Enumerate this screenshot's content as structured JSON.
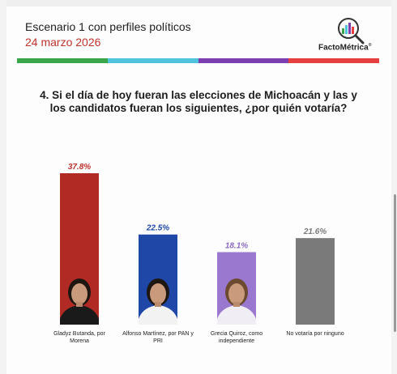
{
  "header": {
    "title": "Escenario 1 con perfiles políticos",
    "date": "24 marzo 2026"
  },
  "brand": {
    "name": "FactoMétrica",
    "reg": "®"
  },
  "stripe_colors": [
    "#3ba54a",
    "#4fc3dc",
    "#7b3fb2",
    "#e5403f"
  ],
  "question": "4. Si el día de hoy fueran las elecciones de Michoacán y las y los candidatos fueran los siguientes, ¿por quién votaría?",
  "chart_data": {
    "type": "bar",
    "categories": [
      [
        "Gladyz Butanda, por",
        "Morena"
      ],
      [
        "Alfonso Martínez, por PAN y",
        "PRI"
      ],
      [
        "Grecia Quiroz, como",
        "independiente"
      ],
      [
        "No votaría por ninguno"
      ]
    ],
    "values": [
      37.8,
      22.5,
      18.1,
      21.6
    ],
    "value_labels": [
      "37.8%",
      "22.5%",
      "18.1%",
      "21.6%"
    ],
    "colors": [
      "#b22a24",
      "#1f47a8",
      "#9b78d0",
      "#7a7a7a"
    ],
    "label_colors": [
      "#c0322d",
      "#1f47a8",
      "#8a6ac4",
      "#7a7a7a"
    ],
    "has_photo": [
      true,
      true,
      true,
      false
    ],
    "ylim": [
      0,
      40
    ],
    "grid": false
  }
}
